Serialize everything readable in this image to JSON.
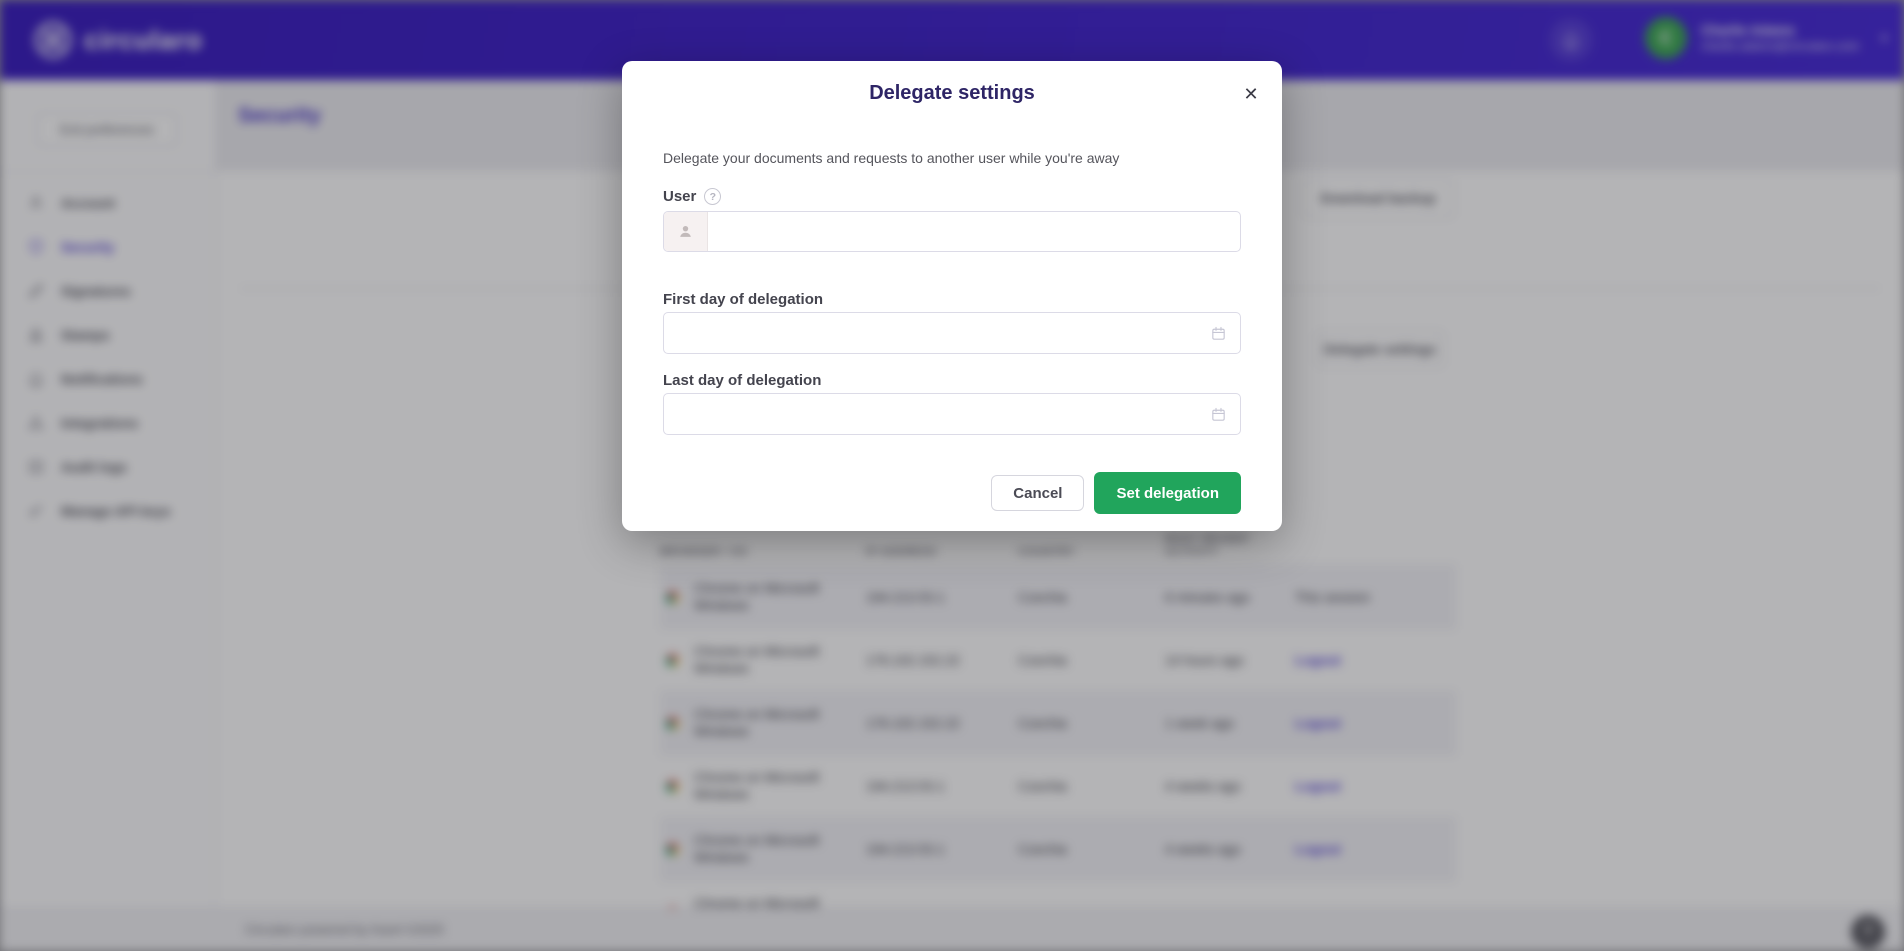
{
  "colors": {
    "header_purple": "#4a2ed8",
    "accent_purple": "#5743d6",
    "title_navy": "#2e2566",
    "submit_green": "#21a55c",
    "avatar_green": "#41ab57"
  },
  "header": {
    "brand": "circularo",
    "bell_icon": "notification-bell",
    "user": {
      "name": "Charlie Adams",
      "email": "charlie.adams@circularo.com",
      "avatar_initial": "C",
      "caret": "▾"
    }
  },
  "sidebar": {
    "exit_button": "Exit preferences",
    "items": [
      {
        "label": "Account",
        "icon": "user-icon",
        "active": false
      },
      {
        "label": "Security",
        "icon": "shield-icon",
        "active": true
      },
      {
        "label": "Signatures",
        "icon": "pen-icon",
        "active": false
      },
      {
        "label": "Stamps",
        "icon": "stamp-icon",
        "active": false
      },
      {
        "label": "Notifications",
        "icon": "bell-icon",
        "active": false
      },
      {
        "label": "Integrations",
        "icon": "integrations-icon",
        "active": false
      },
      {
        "label": "Audit logs",
        "icon": "audit-logs-icon",
        "active": false
      },
      {
        "label": "Manage API keys",
        "icon": "key-icon",
        "active": false
      }
    ]
  },
  "main": {
    "page_title": "Security",
    "download_backup_label": "Download backup",
    "delegate_settings_label": "Delegate settings",
    "sessions_table": {
      "columns": [
        "Browser / OS",
        "IP address",
        "Country",
        "Most recent activity",
        ""
      ],
      "rows": [
        {
          "browser": "Chrome on Microsoft Windows",
          "ip": "194.213.53.1",
          "country": "Czechia",
          "activity": "6 minutes ago",
          "action": "This session",
          "action_type": "text"
        },
        {
          "browser": "Chrome on Microsoft Windows",
          "ip": "176.102.152.22",
          "country": "Czechia",
          "activity": "14 hours ago",
          "action": "Logout",
          "action_type": "link"
        },
        {
          "browser": "Chrome on Microsoft Windows",
          "ip": "176.102.152.22",
          "country": "Czechia",
          "activity": "1 week ago",
          "action": "Logout",
          "action_type": "link"
        },
        {
          "browser": "Chrome on Microsoft Windows",
          "ip": "194.213.53.1",
          "country": "Czechia",
          "activity": "4 weeks ago",
          "action": "Logout",
          "action_type": "link"
        },
        {
          "browser": "Chrome on Microsoft Windows",
          "ip": "194.213.53.1",
          "country": "Czechia",
          "activity": "4 weeks ago",
          "action": "Logout",
          "action_type": "link"
        },
        {
          "browser": "Chrome on Microsoft Windows",
          "ip": "",
          "country": "",
          "activity": "",
          "action": "",
          "action_type": "text"
        }
      ]
    },
    "footer_text": "Circularo powered by Karel ©2025",
    "help_bubble": "?"
  },
  "modal": {
    "title": "Delegate settings",
    "close_icon": "✕",
    "description": "Delegate your documents and requests to another user while you're away",
    "user_label": "User",
    "help_icon": "?",
    "user_value": "",
    "first_day_label": "First day of delegation",
    "first_day_value": "",
    "last_day_label": "Last day of delegation",
    "last_day_value": "",
    "cancel_label": "Cancel",
    "submit_label": "Set delegation"
  }
}
